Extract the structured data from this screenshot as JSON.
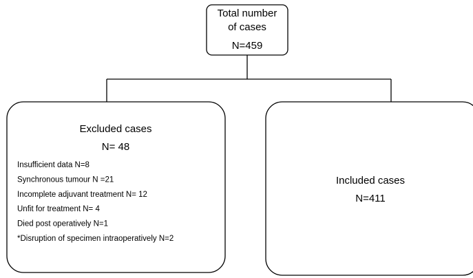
{
  "nodes": [
    {
      "title_lines": [
        "Total number",
        "of cases"
      ],
      "count": "N=459"
    },
    {
      "title": "Excluded cases",
      "count": "N= 48",
      "items": [
        "Insufficient data N=8",
        "Synchronous tumour N =21",
        "Incomplete adjuvant treatment N= 12",
        "Unfit for treatment N= 4",
        "Died post operatively N=1",
        "*Disruption of specimen intraoperatively N=2"
      ]
    },
    {
      "title": "Included cases",
      "count": "N=411"
    }
  ]
}
